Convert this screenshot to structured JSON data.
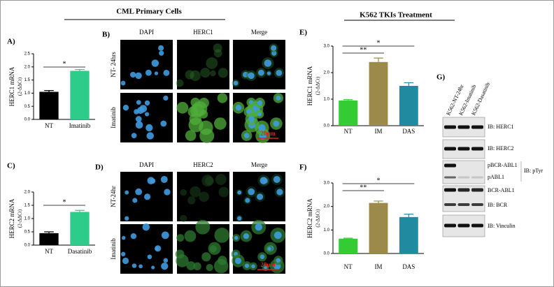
{
  "headers": [
    "CML Primary Cells",
    "K562 TKIs Treatment"
  ],
  "chart_data": [
    {
      "type": "bar",
      "panel": "A)",
      "ylabel": "HERC1 mRNA",
      "ylabel_unit": "(2-ΔΔCt)",
      "categories": [
        "NT",
        "Imatinib"
      ],
      "values": [
        1.05,
        1.85
      ],
      "errors": [
        0.05,
        0.05
      ],
      "colors": [
        "#000000",
        "#2ecc8a"
      ],
      "ylim": [
        0,
        2.5
      ],
      "yticks": [
        {
          "value": 0,
          "label": "0.0"
        },
        {
          "value": 0.5,
          "label": "0.5"
        },
        {
          "value": 1,
          "label": "1.0"
        },
        {
          "value": 1.5,
          "label": "1.5"
        },
        {
          "value": 2,
          "label": "2.0"
        },
        {
          "value": 2.5,
          "label": "2.5"
        }
      ],
      "significance": [
        {
          "from": 0,
          "to": 1,
          "label": "*"
        }
      ]
    },
    {
      "type": "bar",
      "panel": "C)",
      "ylabel": "HERC2 mRNA",
      "ylabel_unit": "(2-ΔΔCt)",
      "categories": [
        "NT",
        "Dasatinib"
      ],
      "values": [
        0.45,
        1.25
      ],
      "errors": [
        0.05,
        0.06
      ],
      "colors": [
        "#000000",
        "#2ecc8a"
      ],
      "ylim": [
        0,
        2
      ],
      "yticks": [
        {
          "value": 0,
          "label": "0.0"
        },
        {
          "value": 0.5,
          "label": "0.5"
        },
        {
          "value": 1,
          "label": "1.0"
        },
        {
          "value": 1.5,
          "label": "1.5"
        },
        {
          "value": 2,
          "label": "2.0"
        }
      ],
      "significance": [
        {
          "from": 0,
          "to": 1,
          "label": "*"
        }
      ]
    },
    {
      "type": "bar",
      "panel": "E)",
      "ylabel": "HERC1 mRNA",
      "ylabel_unit": "(2-ΔΔCt)",
      "categories": [
        "NT",
        "IM",
        "DAS"
      ],
      "values": [
        0.95,
        2.4,
        1.5
      ],
      "errors": [
        0.03,
        0.15,
        0.12
      ],
      "colors": [
        "#33cc33",
        "#9b8a4a",
        "#1f8aa0"
      ],
      "ylim": [
        0,
        3
      ],
      "yticks": [
        {
          "value": 0,
          "label": "0.0"
        },
        {
          "value": 1,
          "label": "1.0"
        },
        {
          "value": 2,
          "label": "2.0"
        },
        {
          "value": 3,
          "label": "3.0"
        }
      ],
      "significance": [
        {
          "from": 0,
          "to": 1,
          "label": "**"
        },
        {
          "from": 0,
          "to": 2,
          "label": "*"
        }
      ]
    },
    {
      "type": "bar",
      "panel": "F)",
      "ylabel": "HERC2 mRNA",
      "ylabel_unit": "(2-ΔΔCt)",
      "categories": [
        "NT",
        "IM",
        "DAS"
      ],
      "values": [
        0.63,
        2.15,
        1.55
      ],
      "errors": [
        0.02,
        0.08,
        0.12
      ],
      "colors": [
        "#33cc33",
        "#9b8a4a",
        "#1f8aa0"
      ],
      "ylim": [
        0,
        3
      ],
      "yticks": [
        {
          "value": 0,
          "label": "0.0"
        },
        {
          "value": 1,
          "label": "1.0"
        },
        {
          "value": 2,
          "label": "2.0"
        },
        {
          "value": 3,
          "label": "3.0"
        }
      ],
      "significance": [
        {
          "from": 0,
          "to": 1,
          "label": "**"
        },
        {
          "from": 0,
          "to": 2,
          "label": "*"
        }
      ]
    }
  ],
  "microscopy": [
    {
      "panel": "B)",
      "columns": [
        "DAPI",
        "HERC1",
        "Merge"
      ],
      "rows": [
        "NT- 24hrs",
        "Imatinib"
      ],
      "scale_bar": "20μm"
    },
    {
      "panel": "D)",
      "columns": [
        "DAPI",
        "HERC2",
        "Merge"
      ],
      "rows": [
        "NT-24hr",
        "Imatinib"
      ],
      "scale_bar": "20μm"
    }
  ],
  "blot": {
    "panel": "G)",
    "lanes": [
      "K562-NT-24hr",
      "K562-Imatinib",
      "K562-Dasatinib"
    ],
    "labels": [
      "IB: HERC1",
      "IB: HERC2",
      "pBCR-ABL1",
      "pABL1",
      "IB: pTyr",
      "BCR-ABL1",
      "IB: BCR",
      "IB: Vinculin"
    ]
  }
}
